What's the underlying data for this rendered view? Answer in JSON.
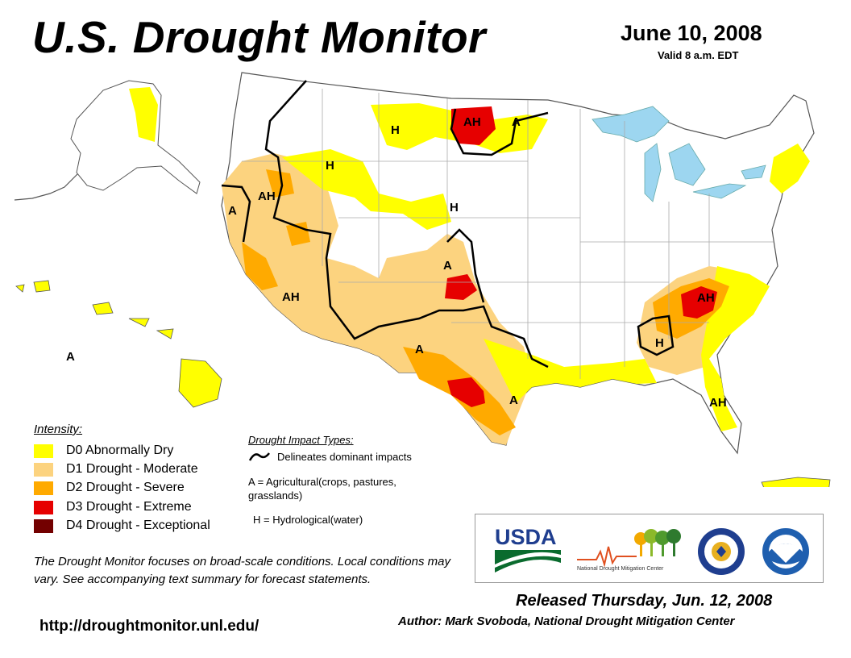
{
  "header": {
    "title": "U.S. Drought Monitor",
    "date": "June 10, 2008",
    "valid": "Valid 8 a.m. EDT"
  },
  "map": {
    "labels": [
      "H",
      "AH",
      "A",
      "H",
      "AH",
      "A",
      "H",
      "A",
      "AH",
      "A",
      "AH",
      "H",
      "A",
      "AH",
      "A"
    ]
  },
  "legend": {
    "title": "Intensity:",
    "items": [
      {
        "label": "D0 Abnormally Dry",
        "color": "#FFFF00"
      },
      {
        "label": "D1 Drought - Moderate",
        "color": "#FCD37F"
      },
      {
        "label": "D2 Drought - Severe",
        "color": "#FFAA00"
      },
      {
        "label": "D3 Drought - Extreme",
        "color": "#E60000"
      },
      {
        "label": "D4 Drought - Exceptional",
        "color": "#730000"
      }
    ]
  },
  "impacts": {
    "title": "Drought Impact Types:",
    "line_label": "Delineates dominant impacts",
    "agricultural": "A = Agricultural(crops, pastures, grasslands)",
    "hydrological": "H = Hydrological(water)"
  },
  "disclaimer": "The Drought Monitor focuses on broad-scale conditions. Local conditions may vary. See accompanying text summary for forecast statements.",
  "url": "http://droughtmonitor.unl.edu/",
  "logos": {
    "usda": "USDA",
    "ndmc": "National Drought Mitigation Center"
  },
  "footer": {
    "released": "Released Thursday, Jun. 12, 2008",
    "author": "Author: Mark Svoboda, National Drought Mitigation Center"
  }
}
